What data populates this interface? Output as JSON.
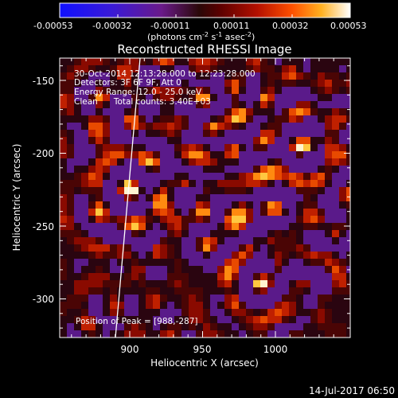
{
  "colorbar": {
    "tick_labels": [
      "-0.00053",
      "-0.00032",
      "-0.00011",
      "0.00011",
      "0.00032",
      "0.00053"
    ],
    "unit_label": "(photons cm",
    "unit_exp1": "-2",
    "unit_mid": " s",
    "unit_exp2": "-1",
    "unit_mid2": " asec",
    "unit_exp3": "-2",
    "unit_end": ")"
  },
  "image": {
    "title": "Reconstructed RHESSI Image",
    "xlabel": "Heliocentric X (arcsec)",
    "ylabel": "Heliocentric Y (arcsec)",
    "x_ticks": [
      "900",
      "950",
      "1000"
    ],
    "y_ticks": [
      "-150",
      "-200",
      "-250",
      "-300"
    ],
    "annotations": [
      "30-Oct-2014 12:13:28.000 to 12:23:28.000",
      "Detectors: 3F 6F 9F, Att 0",
      "Energy Range: 12.0 - 25.0 keV",
      "Clean      Total counts: 3.40E+03"
    ],
    "peak_label": "Position of Peak = [988,-287]"
  },
  "footer": {
    "date": "14-Jul-2017 06:50"
  },
  "colors": {
    "background": "#000000",
    "text": "#ffffff"
  }
}
